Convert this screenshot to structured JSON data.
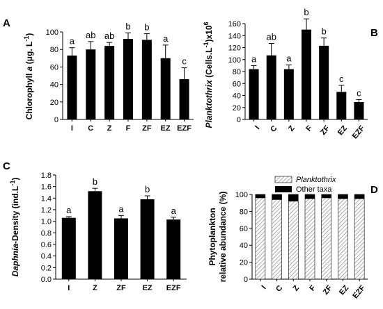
{
  "chart_data": [
    {
      "panel": "A",
      "type": "bar",
      "categories": [
        "I",
        "C",
        "Z",
        "F",
        "ZF",
        "EZ",
        "EZF"
      ],
      "values": [
        73,
        80,
        84,
        92,
        91,
        70,
        46
      ],
      "errors": [
        9,
        9,
        4,
        7,
        7,
        15,
        13
      ],
      "significance": [
        "a",
        "ab",
        "ab",
        "b",
        "b",
        "a",
        "c"
      ],
      "ylabel_parts": [
        "Chlorophyll ",
        "a",
        " (μg. L",
        "-1",
        ")"
      ],
      "ylim": [
        0,
        100
      ],
      "yticks": [
        0,
        20,
        40,
        60,
        80,
        100
      ],
      "bar_color": "#000000"
    },
    {
      "panel": "B",
      "type": "bar",
      "categories": [
        "I",
        "C",
        "Z",
        "F",
        "ZF",
        "EZ",
        "EZF"
      ],
      "values": [
        84,
        107,
        84,
        150,
        123,
        46,
        29
      ],
      "errors": [
        6,
        20,
        7,
        18,
        13,
        11,
        4
      ],
      "significance": [
        "a",
        "ab",
        "a",
        "b",
        "b",
        "c",
        "c"
      ],
      "ylabel_parts": [
        "Planktothrix",
        " (Cells.L",
        "-1",
        ")x10",
        "6"
      ],
      "ylim": [
        0,
        160
      ],
      "yticks": [
        0,
        20,
        40,
        60,
        80,
        100,
        120,
        140,
        160
      ],
      "bar_color": "#000000"
    },
    {
      "panel": "C",
      "type": "bar",
      "categories": [
        "I",
        "Z",
        "ZF",
        "EZ",
        "EZF"
      ],
      "values": [
        1.06,
        1.52,
        1.05,
        1.38,
        1.03
      ],
      "errors": [
        0.02,
        0.05,
        0.05,
        0.06,
        0.04
      ],
      "significance": [
        "a",
        "b",
        "a",
        "b",
        "a"
      ],
      "ylabel_parts": [
        "Daphnia",
        "-Density (ind.L",
        "-1",
        ")"
      ],
      "ylim": [
        0,
        1.8
      ],
      "yticks": [
        "0.0",
        "0.2",
        "0.4",
        "0.6",
        "0.8",
        "1.0",
        "1.2",
        "1.4",
        "1.6",
        "1.8"
      ],
      "bar_color": "#000000"
    },
    {
      "panel": "D",
      "type": "bar",
      "stacked": true,
      "categories": [
        "I",
        "C",
        "Z",
        "F",
        "ZF",
        "EZ",
        "EZF"
      ],
      "series": [
        {
          "name": "Planktothrix",
          "values": [
            96,
            94,
            92,
            95,
            96,
            95,
            95
          ],
          "pattern": "diagonal-hatch"
        },
        {
          "name": "Other taxa",
          "values": [
            4,
            6,
            8,
            5,
            4,
            5,
            5
          ],
          "color": "#000000"
        }
      ],
      "ylabel_lines": [
        "Phytoplankton",
        "relative abundance (%)"
      ],
      "ylim": [
        0,
        100
      ],
      "yticks": [
        0,
        20,
        40,
        60,
        80,
        100
      ],
      "legend_position": "top-left"
    }
  ]
}
